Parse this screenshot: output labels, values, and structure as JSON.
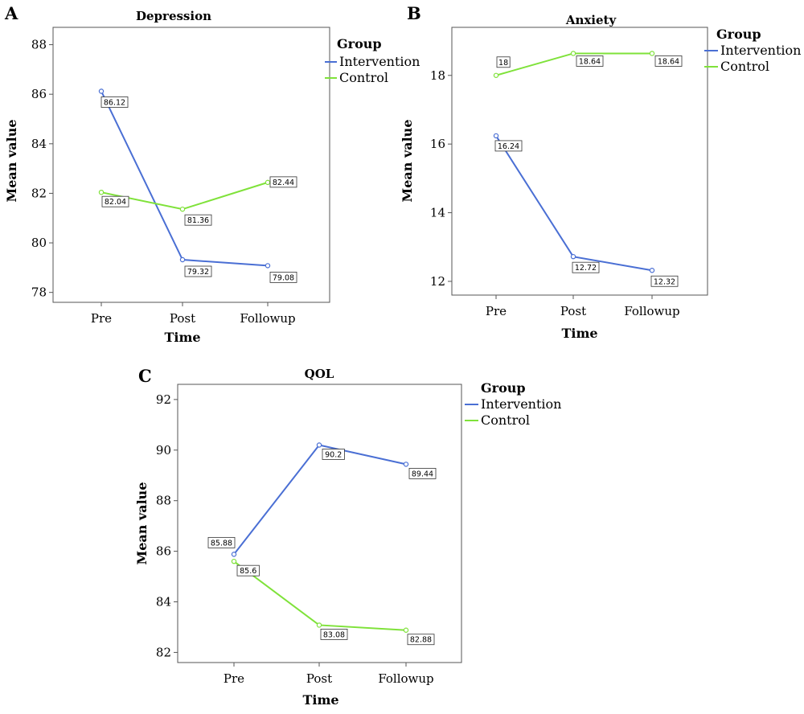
{
  "colors": {
    "intervention": "#4a6fd4",
    "control": "#7fe23a"
  },
  "chart_data": [
    {
      "type": "line",
      "panel": "A",
      "title": "Depression",
      "xlabel": "Time",
      "ylabel": "Mean value",
      "categories": [
        "Pre",
        "Post",
        "Followup"
      ],
      "ylim": [
        77.6,
        88.7
      ],
      "yticks": [
        "78",
        "80",
        "82",
        "84",
        "86",
        "88"
      ],
      "grid": false,
      "legend": {
        "title": "Group",
        "placement": "right"
      },
      "series": [
        {
          "name": "Intervention",
          "color": "#4a6fd4",
          "values": [
            86.12,
            79.32,
            79.08
          ],
          "labels": [
            "86.12",
            "79.32",
            "79.08"
          ]
        },
        {
          "name": "Control",
          "color": "#7fe23a",
          "values": [
            82.04,
            81.36,
            82.44
          ],
          "labels": [
            "82.04",
            "81.36",
            "82.44"
          ]
        }
      ]
    },
    {
      "type": "line",
      "panel": "B",
      "title": "Anxiety",
      "xlabel": "Time",
      "ylabel": "Mean value",
      "categories": [
        "Pre",
        "Post",
        "Followup"
      ],
      "ylim": [
        11.6,
        19.4
      ],
      "yticks": [
        "12",
        "14",
        "16",
        "18"
      ],
      "grid": false,
      "legend": {
        "title": "Group",
        "placement": "right"
      },
      "series": [
        {
          "name": "Intervention",
          "color": "#4a6fd4",
          "values": [
            16.24,
            12.72,
            12.32
          ],
          "labels": [
            "16.24",
            "12.72",
            "12.32"
          ]
        },
        {
          "name": "Control",
          "color": "#7fe23a",
          "values": [
            18,
            18.64,
            18.64
          ],
          "labels": [
            "18",
            "18.64",
            "18.64"
          ]
        }
      ]
    },
    {
      "type": "line",
      "panel": "C",
      "title": "QOL",
      "xlabel": "Time",
      "ylabel": "Mean value",
      "categories": [
        "Pre",
        "Post",
        "Followup"
      ],
      "ylim": [
        81.6,
        92.6
      ],
      "yticks": [
        "82",
        "84",
        "86",
        "88",
        "90",
        "92"
      ],
      "grid": false,
      "legend": {
        "title": "Group",
        "placement": "right"
      },
      "series": [
        {
          "name": "Intervention",
          "color": "#4a6fd4",
          "values": [
            85.88,
            90.2,
            89.44
          ],
          "labels": [
            "85.88",
            "90.2",
            "89.44"
          ]
        },
        {
          "name": "Control",
          "color": "#7fe23a",
          "values": [
            85.6,
            83.08,
            82.88
          ],
          "labels": [
            "85.6",
            "83.08",
            "82.88"
          ]
        }
      ]
    }
  ]
}
